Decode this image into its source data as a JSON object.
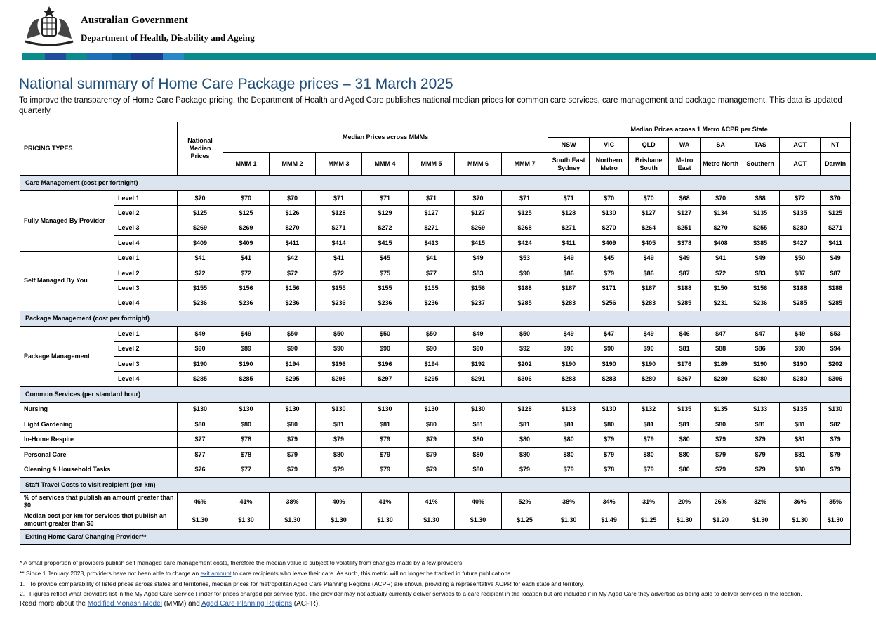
{
  "header": {
    "government": "Australian Government",
    "department": "Department of Health, Disability and Ageing"
  },
  "title": "National summary of Home Care Package prices – 31 March 2025",
  "description": "To improve the transparency of Home Care Package pricing, the Department of Health and Aged Care publishes national median prices for common care services, care management and package management. This data is updated quarterly.",
  "table": {
    "columns": {
      "pricing_types": "PRICING TYPES",
      "national": "National Median Prices",
      "mmm_group": "Median Prices across MMMs",
      "mmm": [
        "MMM 1",
        "MMM 2",
        "MMM 3",
        "MMM 4",
        "MMM 5",
        "MMM 6",
        "MMM 7"
      ],
      "acpr_group": "Median Prices across 1 Metro ACPR per State",
      "states": [
        "NSW",
        "VIC",
        "QLD",
        "WA",
        "SA",
        "TAS",
        "ACT",
        "NT"
      ],
      "regions": [
        "South East Sydney",
        "Northern Metro",
        "Brisbane South",
        "Metro East",
        "Metro North",
        "Southern",
        "ACT",
        "Darwin"
      ]
    },
    "sections": [
      {
        "title": "Care Management (cost per fortnight)",
        "groups": [
          {
            "label": "Fully Managed By Provider",
            "rows": [
              {
                "label": "Level 1",
                "values": [
                  "$70",
                  "$70",
                  "$70",
                  "$71",
                  "$71",
                  "$71",
                  "$70",
                  "$71",
                  "$71",
                  "$70",
                  "$70",
                  "$68",
                  "$70",
                  "$68",
                  "$72",
                  "$70"
                ]
              },
              {
                "label": "Level 2",
                "values": [
                  "$125",
                  "$125",
                  "$126",
                  "$128",
                  "$129",
                  "$127",
                  "$127",
                  "$125",
                  "$128",
                  "$130",
                  "$127",
                  "$127",
                  "$134",
                  "$135",
                  "$135",
                  "$125"
                ]
              },
              {
                "label": "Level 3",
                "values": [
                  "$269",
                  "$269",
                  "$270",
                  "$271",
                  "$272",
                  "$271",
                  "$269",
                  "$268",
                  "$271",
                  "$270",
                  "$264",
                  "$251",
                  "$270",
                  "$255",
                  "$280",
                  "$271"
                ]
              },
              {
                "label": "Level 4",
                "values": [
                  "$409",
                  "$409",
                  "$411",
                  "$414",
                  "$415",
                  "$413",
                  "$415",
                  "$424",
                  "$411",
                  "$409",
                  "$405",
                  "$378",
                  "$408",
                  "$385",
                  "$427",
                  "$411"
                ]
              }
            ]
          },
          {
            "label": "Self Managed By You",
            "rows": [
              {
                "label": "Level 1",
                "values": [
                  "$41",
                  "$41",
                  "$42",
                  "$41",
                  "$45",
                  "$41",
                  "$49",
                  "$53",
                  "$49",
                  "$45",
                  "$49",
                  "$49",
                  "$41",
                  "$49",
                  "$50",
                  "$49"
                ]
              },
              {
                "label": "Level 2",
                "values": [
                  "$72",
                  "$72",
                  "$72",
                  "$72",
                  "$75",
                  "$77",
                  "$83",
                  "$90",
                  "$86",
                  "$79",
                  "$86",
                  "$87",
                  "$72",
                  "$83",
                  "$87",
                  "$87"
                ]
              },
              {
                "label": "Level 3",
                "values": [
                  "$155",
                  "$156",
                  "$156",
                  "$155",
                  "$155",
                  "$155",
                  "$156",
                  "$188",
                  "$187",
                  "$171",
                  "$187",
                  "$188",
                  "$150",
                  "$156",
                  "$188",
                  "$188"
                ]
              },
              {
                "label": "Level 4",
                "values": [
                  "$236",
                  "$236",
                  "$236",
                  "$236",
                  "$236",
                  "$236",
                  "$237",
                  "$285",
                  "$283",
                  "$256",
                  "$283",
                  "$285",
                  "$231",
                  "$236",
                  "$285",
                  "$285"
                ]
              }
            ]
          }
        ]
      },
      {
        "title": "Package Management (cost per fortnight)",
        "groups": [
          {
            "label": "Package Management",
            "rows": [
              {
                "label": "Level 1",
                "values": [
                  "$49",
                  "$49",
                  "$50",
                  "$50",
                  "$50",
                  "$50",
                  "$49",
                  "$50",
                  "$49",
                  "$47",
                  "$49",
                  "$46",
                  "$47",
                  "$47",
                  "$49",
                  "$53"
                ]
              },
              {
                "label": "Level 2",
                "values": [
                  "$90",
                  "$89",
                  "$90",
                  "$90",
                  "$90",
                  "$90",
                  "$90",
                  "$92",
                  "$90",
                  "$90",
                  "$90",
                  "$81",
                  "$88",
                  "$86",
                  "$90",
                  "$94"
                ]
              },
              {
                "label": "Level 3",
                "values": [
                  "$190",
                  "$190",
                  "$194",
                  "$196",
                  "$196",
                  "$194",
                  "$192",
                  "$202",
                  "$190",
                  "$190",
                  "$190",
                  "$176",
                  "$189",
                  "$190",
                  "$190",
                  "$202"
                ]
              },
              {
                "label": "Level 4",
                "values": [
                  "$285",
                  "$285",
                  "$295",
                  "$298",
                  "$297",
                  "$295",
                  "$291",
                  "$306",
                  "$283",
                  "$283",
                  "$280",
                  "$267",
                  "$280",
                  "$280",
                  "$280",
                  "$306"
                ]
              }
            ]
          }
        ]
      },
      {
        "title": "Common Services (per standard hour)",
        "rows": [
          {
            "label": "Nursing",
            "values": [
              "$130",
              "$130",
              "$130",
              "$130",
              "$130",
              "$130",
              "$130",
              "$128",
              "$133",
              "$130",
              "$132",
              "$135",
              "$135",
              "$133",
              "$135",
              "$130"
            ]
          },
          {
            "label": "Light Gardening",
            "values": [
              "$80",
              "$80",
              "$80",
              "$81",
              "$81",
              "$80",
              "$81",
              "$81",
              "$81",
              "$80",
              "$81",
              "$81",
              "$80",
              "$81",
              "$81",
              "$82"
            ]
          },
          {
            "label": "In-Home Respite",
            "values": [
              "$77",
              "$78",
              "$79",
              "$79",
              "$79",
              "$79",
              "$80",
              "$80",
              "$80",
              "$79",
              "$79",
              "$80",
              "$79",
              "$79",
              "$81",
              "$79"
            ]
          },
          {
            "label": "Personal Care",
            "values": [
              "$77",
              "$78",
              "$79",
              "$80",
              "$79",
              "$79",
              "$80",
              "$80",
              "$80",
              "$79",
              "$80",
              "$80",
              "$79",
              "$79",
              "$81",
              "$79"
            ]
          },
          {
            "label": "Cleaning & Household Tasks",
            "values": [
              "$76",
              "$77",
              "$79",
              "$79",
              "$79",
              "$79",
              "$80",
              "$79",
              "$79",
              "$78",
              "$79",
              "$80",
              "$79",
              "$79",
              "$80",
              "$79"
            ]
          }
        ]
      },
      {
        "title": "Staff Travel Costs to visit recipient (per km)",
        "rows": [
          {
            "label": "% of services that publish an amount greater than $0",
            "values": [
              "46%",
              "41%",
              "38%",
              "40%",
              "41%",
              "41%",
              "40%",
              "52%",
              "38%",
              "34%",
              "31%",
              "20%",
              "26%",
              "32%",
              "36%",
              "35%"
            ]
          },
          {
            "label": "Median cost per km for services that publish an amount greater than $0",
            "values": [
              "$1.30",
              "$1.30",
              "$1.30",
              "$1.30",
              "$1.30",
              "$1.30",
              "$1.30",
              "$1.25",
              "$1.30",
              "$1.49",
              "$1.25",
              "$1.30",
              "$1.20",
              "$1.30",
              "$1.30",
              "$1.30"
            ]
          }
        ]
      },
      {
        "title": "Exiting Home Care/ Changing Provider**"
      }
    ]
  },
  "footnotes": {
    "notes": [
      [
        "* A small proportion of providers publish self managed care management costs, therefore the median value is subject to volatility from changes made by a few providers."
      ],
      [
        "** Since 1 January 2023, providers have not been able to charge an ",
        "exit amount",
        " to care recipients who leave their care. As such, this metric will no longer be tracked in future publications."
      ]
    ],
    "numbered": [
      {
        "number": "1.",
        "text": "To provide comparability of listed prices across states and territories, median prices for metropolitan Aged Care Planning Regions (ACPR) are shown, providing a representative ACPR for each state and territory."
      },
      {
        "number": "2.",
        "text": "Figures reflect what providers list in the My Aged Care Service Finder for prices charged per service type. The provider may not actually currently deliver services to a care recipient in the location but are included if in My Aged Care they advertise as being able to deliver services in the location."
      }
    ],
    "read_more": [
      "Read more about the ",
      "Modified Monash Model",
      " (MMM) and ",
      "Aged Care Planning Regions",
      " (ACPR)."
    ]
  }
}
